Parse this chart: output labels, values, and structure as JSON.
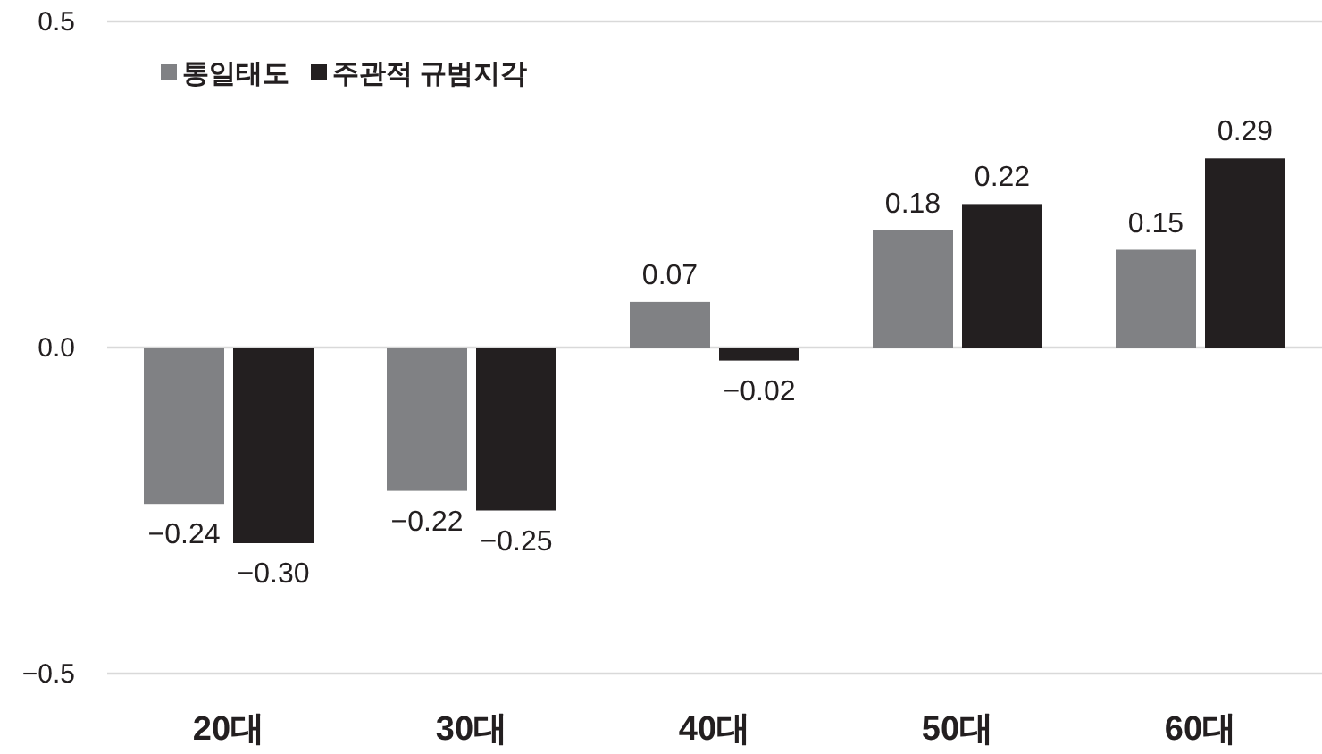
{
  "chart_data": {
    "type": "bar",
    "categories": [
      "20대",
      "30대",
      "40대",
      "50대",
      "60대"
    ],
    "series": [
      {
        "name": "통일태도",
        "color": "#808184",
        "values": [
          -0.24,
          -0.22,
          0.07,
          0.18,
          0.15
        ],
        "value_labels": [
          "−0.24",
          "−0.22",
          "0.07",
          "0.18",
          "0.15"
        ]
      },
      {
        "name": "주관적 규범지각",
        "color": "#231f20",
        "values": [
          -0.3,
          -0.25,
          -0.02,
          0.22,
          0.29
        ],
        "value_labels": [
          "−0.30",
          "−0.25",
          "−0.02",
          "0.22",
          "0.29"
        ]
      }
    ],
    "ylim": [
      -0.5,
      0.5
    ],
    "yticks": [
      {
        "value": -0.5,
        "label": "−0.5"
      },
      {
        "value": 0,
        "label": "0.0"
      },
      {
        "value": 0.5,
        "label": "0.5"
      }
    ],
    "grid": "y",
    "legend": "top left"
  }
}
